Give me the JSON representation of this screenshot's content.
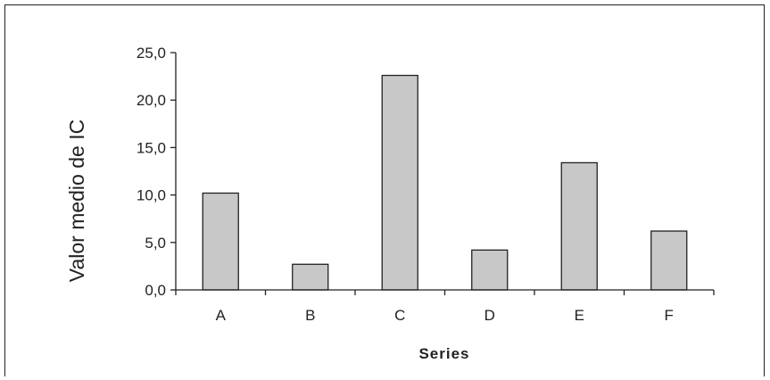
{
  "chart_data": {
    "type": "bar",
    "categories": [
      "A",
      "B",
      "C",
      "D",
      "E",
      "F"
    ],
    "values": [
      10.2,
      2.7,
      22.6,
      4.2,
      13.4,
      6.2
    ],
    "xlabel": "Series",
    "ylabel": "Valor medio de IC",
    "ylim": [
      0,
      25
    ],
    "yticks": [
      "0,0",
      "5,0",
      "10,0",
      "15,0",
      "20,0",
      "25,0"
    ],
    "grid": false,
    "legend": "none",
    "bar_color": "#c8c8c8",
    "bar_edge_color": "#222222"
  }
}
